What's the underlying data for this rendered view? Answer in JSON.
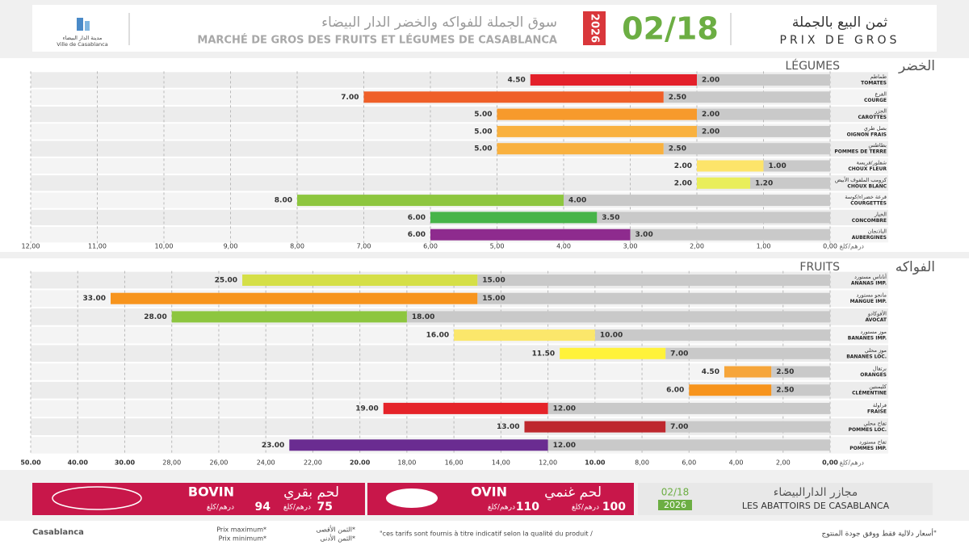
{
  "header": {
    "logo_ar": "مدينة الدار البيضاء",
    "logo_fr": "Ville de Casablanca",
    "title_ar": "سوق الجملة للفواكه والخضر الدار البيضاء",
    "title_fr": "MARCHÉ DE GROS DES FRUITS ET LÉGUMES DE CASABLANCA",
    "year": "2026",
    "date": "02/18",
    "label_ar": "ثمن البيع بالجملة",
    "label_fr": "PRIX DE GROS"
  },
  "chart_data": [
    {
      "type": "bar",
      "orientation": "horizontal",
      "title": "LÉGUMES",
      "title_ar": "الخضر",
      "x_label": "درهم/كلغ",
      "categories": [
        "TOMATES",
        "COURGE",
        "CAROTTES",
        "OIGNON FRAIS",
        "POMMES DE TERRE",
        "CHOUX FLEUR",
        "CHOUX BLANC",
        "COURGETTES",
        "CONCOMBRE",
        "AUBERGINES"
      ],
      "categories_ar": [
        "طماطم",
        "القرع",
        "الجزر",
        "بصل طري",
        "بطاطس",
        "شفلور/فريسة",
        "كرومب الملفوف الأبيض",
        "قرعة خضراء/كوسة",
        "الخيار",
        "الباذنجان"
      ],
      "series": [
        {
          "name": "Prix maximum*",
          "name_ar": "الثمن الأقصى*",
          "colors": [
            "#e3202a",
            "#ef5f28",
            "#f79a2c",
            "#f9b13f",
            "#f9b13f",
            "#fde46a",
            "#e9ee5a",
            "#8dc63f",
            "#47b449",
            "#8e2b8e"
          ],
          "values": [
            4.5,
            7,
            5,
            5,
            5,
            2,
            2,
            8,
            6,
            6
          ],
          "value_labels": [
            "4.50",
            "7.00",
            "5.00",
            "5.00",
            "5.00",
            "2.00",
            "2.00",
            "8.00",
            "6.00",
            "6.00"
          ]
        },
        {
          "name": "Prix minimum*",
          "name_ar": "الثمن الأدنى*",
          "color": "#c9c9c9",
          "values": [
            2,
            2.5,
            2,
            2,
            2.5,
            1,
            1.2,
            4,
            3.5,
            3
          ],
          "value_labels": [
            "2.00",
            "2.50",
            "2.00",
            "2.00",
            "2.50",
            "1.00",
            "1.20",
            "4.00",
            "3.50",
            "3.00"
          ]
        }
      ],
      "xlim": [
        0,
        12
      ],
      "reversed": true,
      "grid": true,
      "xticks": [
        {
          "value": 0,
          "label": "0,00"
        },
        {
          "value": 1,
          "label": "1,00"
        },
        {
          "value": 2,
          "label": "2,00"
        },
        {
          "value": 3,
          "label": "3,00"
        },
        {
          "value": 4,
          "label": "4,00"
        },
        {
          "value": 5,
          "label": "5,00"
        },
        {
          "value": 6,
          "label": "6,00"
        },
        {
          "value": 7,
          "label": "7,00"
        },
        {
          "value": 8,
          "label": "8,00"
        },
        {
          "value": 9,
          "label": "9,00"
        },
        {
          "value": 10,
          "label": "10,00"
        },
        {
          "value": 11,
          "label": "11,00"
        },
        {
          "value": 12,
          "label": "12,00"
        }
      ]
    },
    {
      "type": "bar",
      "orientation": "horizontal",
      "title": "FRUITS",
      "title_ar": "الفواكه",
      "x_label": "درهم/كلغ",
      "categories": [
        "ANANAS IMP.",
        "MANGUE IMP.",
        "AVOCAT",
        "BANANES IMP.",
        "BANANES LOC.",
        "ORANGES",
        "CLÉMENTINE",
        "FRAISE",
        "POMMES LOC.",
        "POMMES IMP."
      ],
      "categories_ar": [
        "أناناس مستورد",
        "مانجو مستورد",
        "الأفوكادو",
        "موز مستورد",
        "موز محلي",
        "برتقال",
        "كليمنتين",
        "فراولة",
        "تفاح محلي",
        "تفاح مستورد"
      ],
      "series": [
        {
          "name": "Prix maximum*",
          "colors": [
            "#d5df47",
            "#f7941d",
            "#8dc63f",
            "#fbe76b",
            "#fff23a",
            "#f6a53a",
            "#f7941d",
            "#e52329",
            "#be272d",
            "#6a2c91"
          ],
          "values": [
            25,
            33,
            28,
            16,
            11.5,
            4.5,
            6,
            19,
            13,
            23
          ],
          "value_labels": [
            "25.00",
            "33.00",
            "28.00",
            "16.00",
            "11.50",
            "4.50",
            "6.00",
            "19.00",
            "13.00",
            "23.00"
          ]
        },
        {
          "name": "Prix minimum*",
          "color": "#c9c9c9",
          "values": [
            15,
            15,
            18,
            10,
            7,
            2.5,
            2.5,
            12,
            7,
            12
          ],
          "value_labels": [
            "15.00",
            "15.00",
            "18.00",
            "10.00",
            "7.00",
            "2.50",
            "2.50",
            "12.00",
            "7.00",
            "12.00"
          ]
        }
      ],
      "xlim": [
        0,
        50
      ],
      "reversed": true,
      "grid": true,
      "xticks": [
        {
          "value": 0,
          "label": "0,00"
        },
        {
          "value": 2,
          "label": "2,00"
        },
        {
          "value": 4,
          "label": "4,00"
        },
        {
          "value": 6,
          "label": "6,00"
        },
        {
          "value": 8,
          "label": "8,00"
        },
        {
          "value": 10,
          "label": "10.00"
        },
        {
          "value": 12,
          "label": "12,00"
        },
        {
          "value": 14,
          "label": "14,00"
        },
        {
          "value": 16,
          "label": "16,00"
        },
        {
          "value": 18,
          "label": "18,00"
        },
        {
          "value": 20,
          "label": "20.00"
        },
        {
          "value": 22,
          "label": "22,00"
        },
        {
          "value": 24,
          "label": "24,00"
        },
        {
          "value": 26,
          "label": "26,00"
        },
        {
          "value": 28,
          "label": "28,00"
        },
        {
          "value": 30,
          "label": "30.00"
        },
        {
          "value": 40,
          "label": "40.00"
        },
        {
          "value": 50,
          "label": "50.00"
        }
      ]
    }
  ],
  "meat": {
    "unit": "درهم/كلغ",
    "bovin": {
      "name": "BOVIN",
      "name_ar": "لحم بقري",
      "min": 75,
      "max": 94
    },
    "ovin": {
      "name": "OVIN",
      "name_ar": "لحم غنمي",
      "min": 100,
      "max": 110
    },
    "abattoir_ar": "مجازر الدارالبيضاء",
    "abattoir_fr": "LES ABATTOIRS DE CASABLANCA"
  },
  "footer": {
    "logo": "Casablanca",
    "note_fr": "\"ces tarifs sont fournis à titre indicatif selon la qualité du produit /",
    "note_ar": "أسعار دلالية فقط ووفق جودة المنتوج\""
  }
}
